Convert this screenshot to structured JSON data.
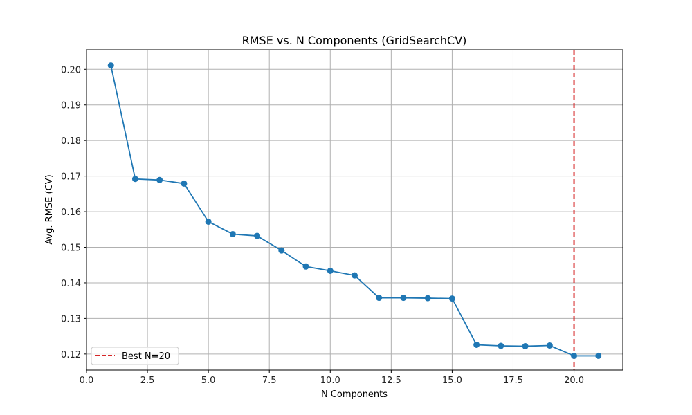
{
  "chart_data": {
    "type": "line",
    "title": "RMSE vs. N Components (GridSearchCV)",
    "xlabel": "N Components",
    "ylabel": "Avg. RMSE (CV)",
    "xlim": [
      0.0,
      22.0
    ],
    "ylim": [
      0.1155,
      0.2055
    ],
    "x_ticks": [
      0.0,
      2.5,
      5.0,
      7.5,
      10.0,
      12.5,
      15.0,
      17.5,
      20.0
    ],
    "x_tick_labels": [
      "0.0",
      "2.5",
      "5.0",
      "7.5",
      "10.0",
      "12.5",
      "15.0",
      "17.5",
      "20.0"
    ],
    "y_ticks": [
      0.12,
      0.13,
      0.14,
      0.15,
      0.16,
      0.17,
      0.18,
      0.19,
      0.2
    ],
    "y_tick_labels": [
      "0.12",
      "0.13",
      "0.14",
      "0.15",
      "0.16",
      "0.17",
      "0.18",
      "0.19",
      "0.20"
    ],
    "grid": true,
    "series": [
      {
        "color": "#1f77b4",
        "marker": "circle",
        "x": [
          1,
          2,
          3,
          4,
          5,
          6,
          7,
          8,
          9,
          10,
          11,
          12,
          13,
          14,
          15,
          16,
          17,
          18,
          19,
          20,
          21
        ],
        "values": [
          0.2011,
          0.1692,
          0.1689,
          0.1679,
          0.1572,
          0.1537,
          0.1532,
          0.1491,
          0.1446,
          0.1434,
          0.1421,
          0.1358,
          0.1358,
          0.1357,
          0.1356,
          0.1226,
          0.1223,
          0.1222,
          0.1224,
          0.1195,
          0.1195
        ]
      }
    ],
    "reference_lines": [
      {
        "type": "vertical",
        "x": 20,
        "color": "#d62728",
        "style": "dashed",
        "label": "Best N=20"
      }
    ],
    "legend": {
      "placement": "lower-left",
      "entries": [
        "Best N=20"
      ]
    }
  }
}
